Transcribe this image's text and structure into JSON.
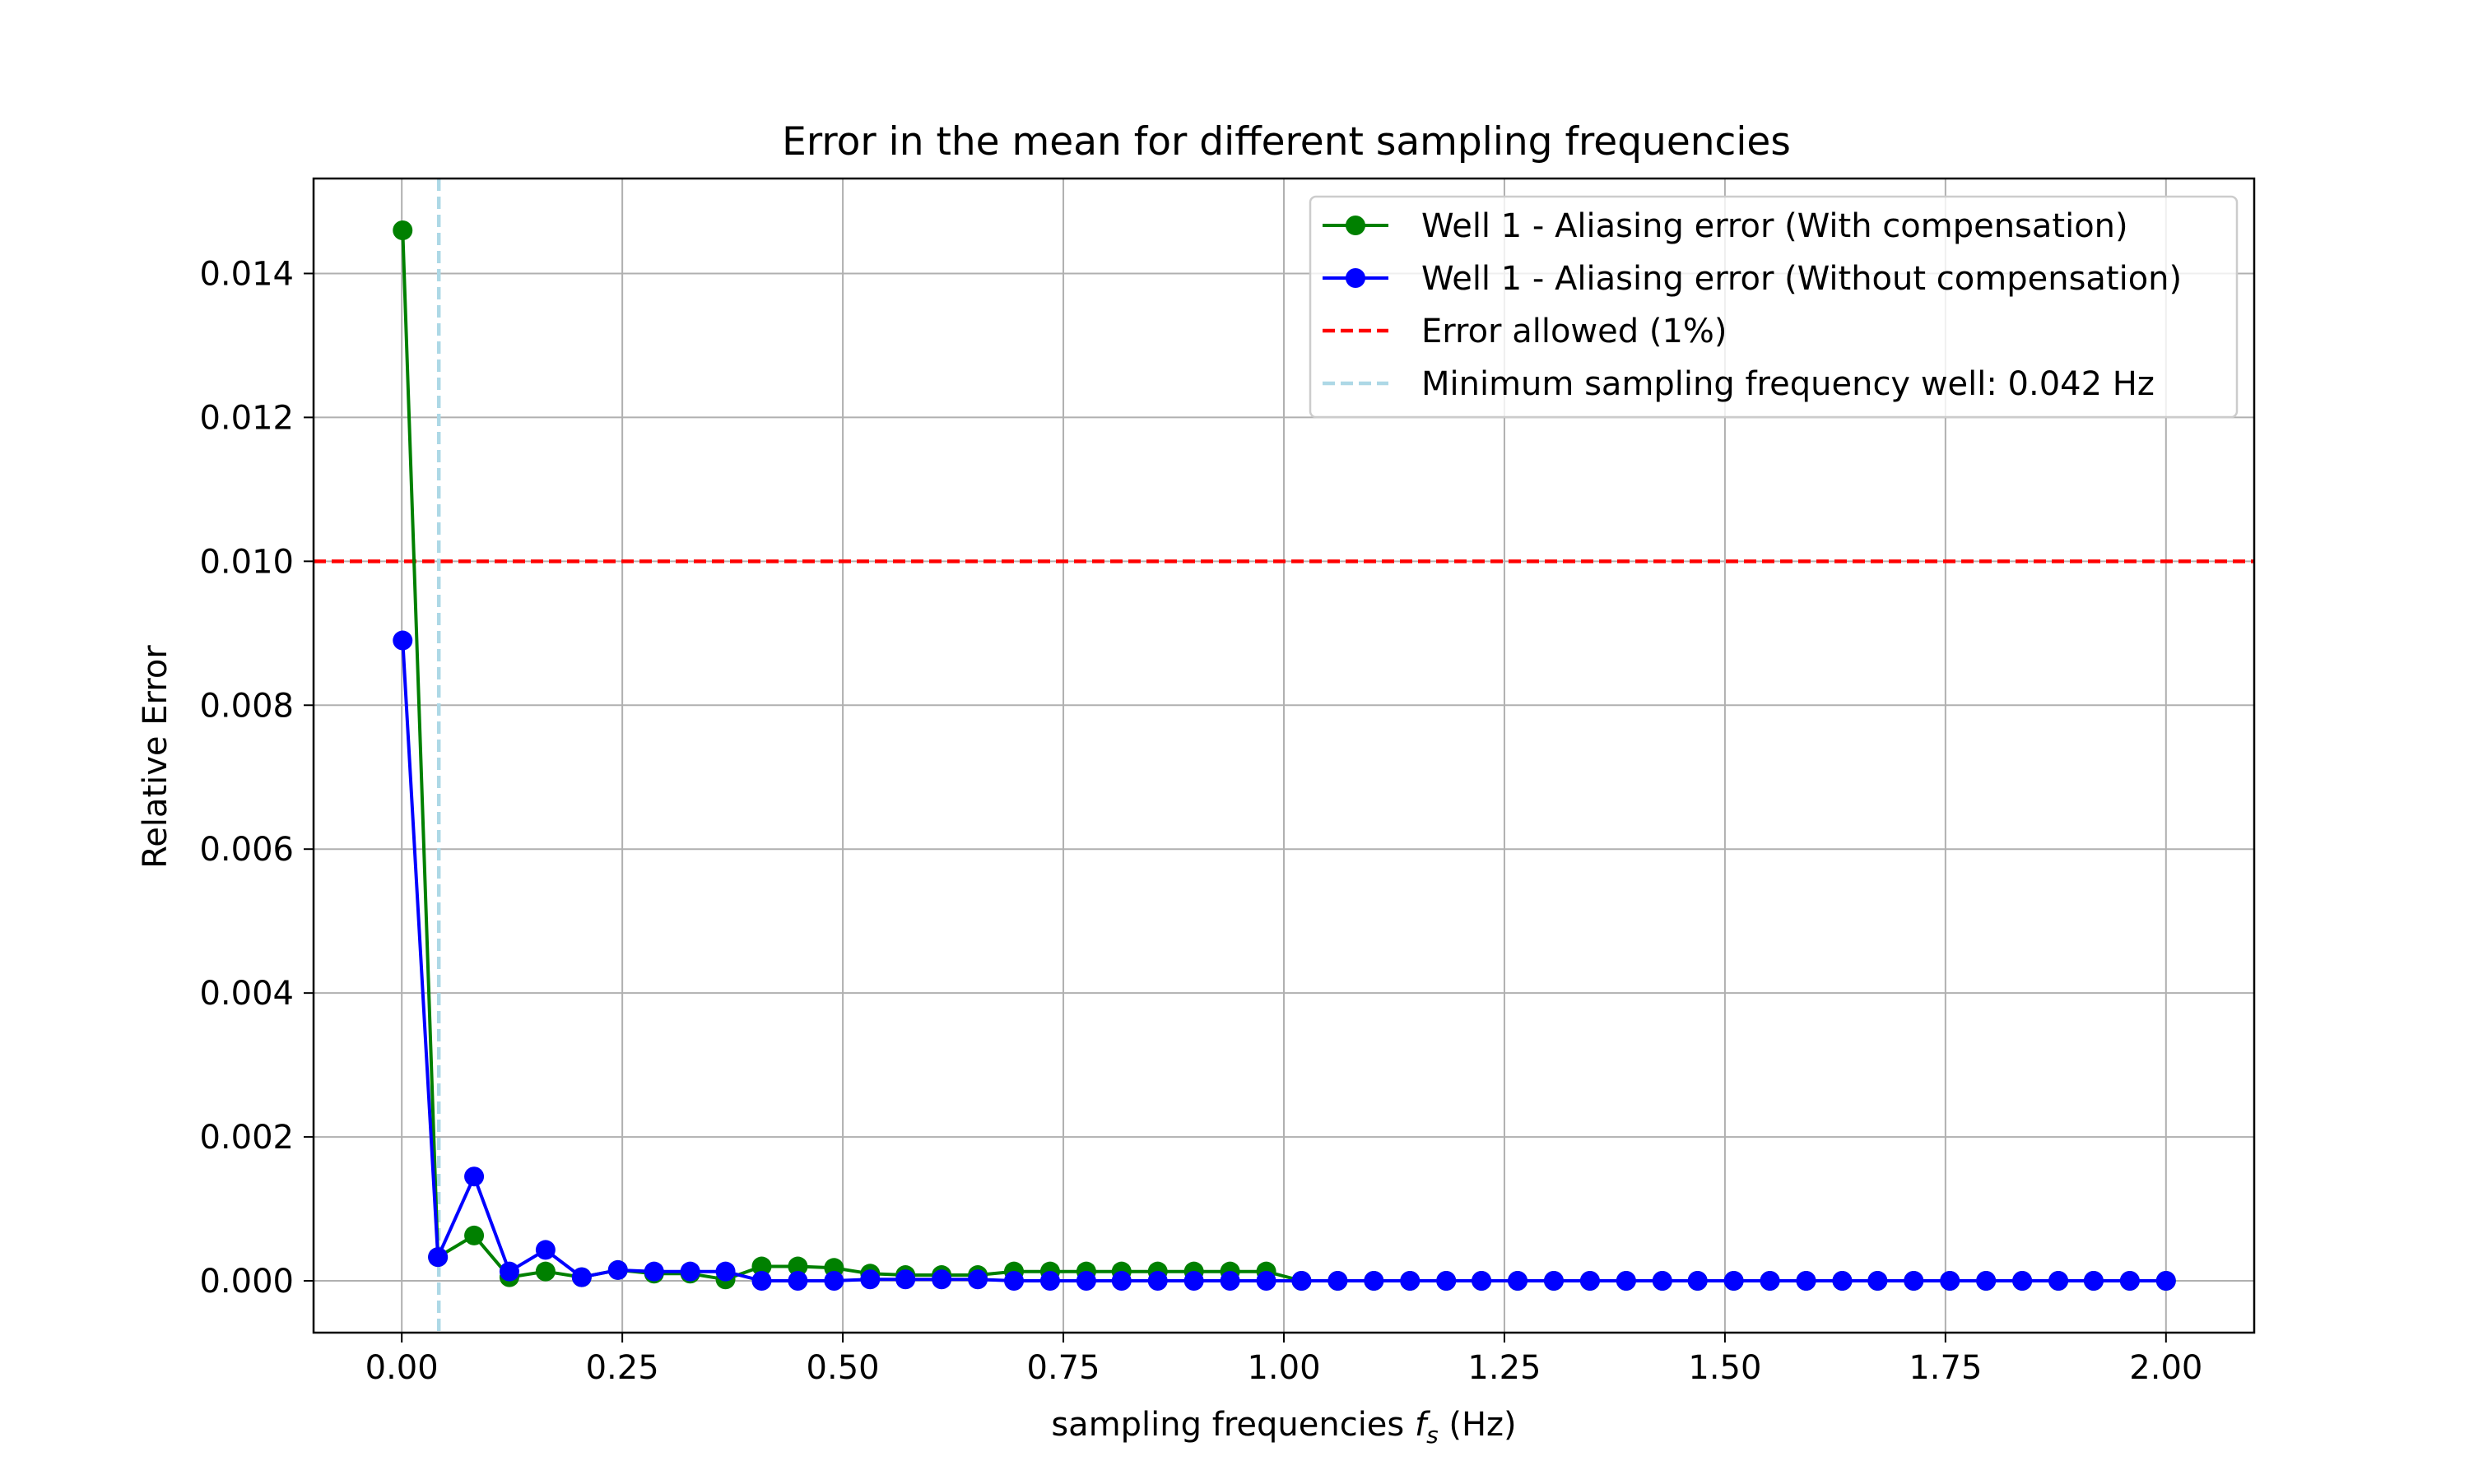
{
  "chart_data": {
    "type": "line",
    "title": "Error in the mean for different sampling frequencies",
    "xlabel_prefix": "sampling frequencies ",
    "xlabel_symbol": "f",
    "xlabel_subscript": "s",
    "xlabel_suffix": " (Hz)",
    "ylabel": "Relative Error",
    "xlim": [
      -0.1,
      2.1
    ],
    "ylim": [
      -0.00072,
      0.01532
    ],
    "x_ticks": [
      0.0,
      0.25,
      0.5,
      0.75,
      1.0,
      1.25,
      1.5,
      1.75,
      2.0
    ],
    "x_tick_labels": [
      "0.00",
      "0.25",
      "0.50",
      "0.75",
      "1.00",
      "1.25",
      "1.50",
      "1.75",
      "2.00"
    ],
    "y_ticks": [
      0.0,
      0.002,
      0.004,
      0.006,
      0.008,
      0.01,
      0.012,
      0.014
    ],
    "y_tick_labels": [
      "0.000",
      "0.002",
      "0.004",
      "0.006",
      "0.008",
      "0.010",
      "0.012",
      "0.014"
    ],
    "grid": true,
    "legend_position": "top-right",
    "series": [
      {
        "name": "Well 1 - Aliasing error (With compensation)",
        "color": "#008000",
        "marker": "circle",
        "x": [
          0.001,
          0.041,
          0.082,
          0.122,
          0.163,
          0.204,
          0.245,
          0.286,
          0.327,
          0.367,
          0.408,
          0.449,
          0.49,
          0.531,
          0.571,
          0.612,
          0.653,
          0.694,
          0.735,
          0.776,
          0.816,
          0.857,
          0.898,
          0.939,
          0.98,
          1.02,
          1.061,
          1.102,
          1.143,
          1.184,
          1.224,
          1.265,
          1.306,
          1.347,
          1.388,
          1.429,
          1.469,
          1.51,
          1.551,
          1.592,
          1.633,
          1.673,
          1.714,
          1.755,
          1.796,
          1.837,
          1.878,
          1.918,
          1.959,
          2.0
        ],
        "y": [
          0.0146,
          0.00033,
          0.00063,
          5e-05,
          0.00013,
          5e-05,
          0.00015,
          0.0001,
          0.0001,
          2e-05,
          0.0002,
          0.0002,
          0.00018,
          0.0001,
          8e-05,
          8e-05,
          8e-05,
          0.00013,
          0.00013,
          0.00013,
          0.00013,
          0.00013,
          0.00013,
          0.00013,
          0.00013,
          0.0,
          0.0,
          0.0,
          0.0,
          0.0,
          0.0,
          0.0,
          0.0,
          0.0,
          0.0,
          0.0,
          0.0,
          0.0,
          0.0,
          0.0,
          0.0,
          0.0,
          0.0,
          0.0,
          0.0,
          0.0,
          0.0,
          0.0,
          0.0,
          0.0
        ]
      },
      {
        "name": "Well 1 - Aliasing error (Without compensation)",
        "color": "#0000ff",
        "marker": "circle",
        "x": [
          0.001,
          0.041,
          0.082,
          0.122,
          0.163,
          0.204,
          0.245,
          0.286,
          0.327,
          0.367,
          0.408,
          0.449,
          0.49,
          0.531,
          0.571,
          0.612,
          0.653,
          0.694,
          0.735,
          0.776,
          0.816,
          0.857,
          0.898,
          0.939,
          0.98,
          1.02,
          1.061,
          1.102,
          1.143,
          1.184,
          1.224,
          1.265,
          1.306,
          1.347,
          1.388,
          1.429,
          1.469,
          1.51,
          1.551,
          1.592,
          1.633,
          1.673,
          1.714,
          1.755,
          1.796,
          1.837,
          1.878,
          1.918,
          1.959,
          2.0
        ],
        "y": [
          0.0089,
          0.00033,
          0.00145,
          0.00013,
          0.00043,
          5e-05,
          0.00015,
          0.00013,
          0.00013,
          0.00013,
          0.0,
          0.0,
          0.0,
          2e-05,
          2e-05,
          2e-05,
          2e-05,
          0.0,
          0.0,
          0.0,
          0.0,
          0.0,
          0.0,
          0.0,
          0.0,
          0.0,
          0.0,
          0.0,
          0.0,
          0.0,
          0.0,
          0.0,
          0.0,
          0.0,
          0.0,
          0.0,
          0.0,
          0.0,
          0.0,
          0.0,
          0.0,
          0.0,
          0.0,
          0.0,
          0.0,
          0.0,
          0.0,
          0.0,
          0.0,
          0.0
        ]
      }
    ],
    "reference_lines": [
      {
        "name": "Error allowed (1%)",
        "orientation": "horizontal",
        "value": 0.01,
        "color": "#ff0000",
        "style": "dashed"
      },
      {
        "name": "Minimum sampling frequency well: 0.042 Hz",
        "orientation": "vertical",
        "value": 0.042,
        "color": "#add8e6",
        "style": "dashed"
      }
    ]
  }
}
